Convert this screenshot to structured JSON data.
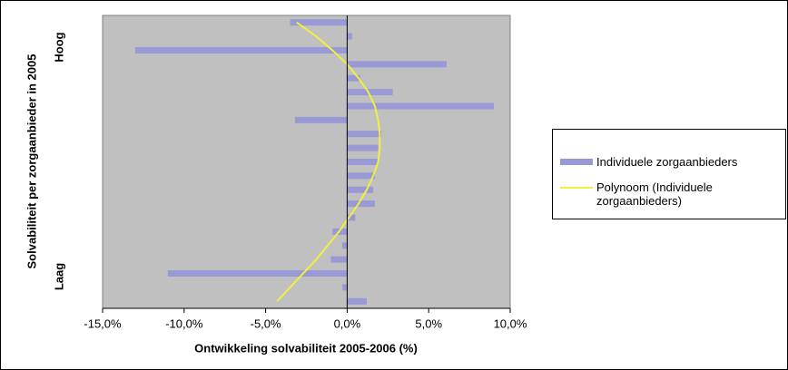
{
  "chart_data": {
    "type": "bar",
    "orientation": "horizontal",
    "x_label": "Ontwikkeling solvabiliteit 2005-2006 (%)",
    "y_label": "Solvabiliteit per zorgaanbieder in 2005",
    "annotations": [
      "Hoog",
      "Laag"
    ],
    "categories": [
      null,
      null,
      null,
      null,
      null,
      null,
      null,
      null,
      null,
      null,
      null,
      null,
      null,
      null,
      null,
      null,
      null,
      null,
      null,
      null,
      null
    ],
    "series": [
      {
        "name": "Individuele zorgaanbieders",
        "color": "#9999d6",
        "type": "bar",
        "values": [
          -3.5,
          0.3,
          -13.0,
          6.1,
          0.8,
          2.8,
          9.0,
          -3.2,
          2.1,
          1.9,
          1.9,
          1.7,
          1.6,
          1.7,
          0.5,
          -0.9,
          -0.3,
          -1.0,
          -11.0,
          -0.3,
          1.2
        ]
      },
      {
        "name": "Polynoom (Individuele zorgaanbieders)",
        "color": "#f0f040",
        "type": "line",
        "values": [
          -3.1,
          -1.9,
          -0.9,
          0.0,
          0.7,
          1.3,
          1.7,
          1.9,
          2.0,
          2.0,
          1.9,
          1.6,
          1.2,
          0.7,
          0.1,
          -0.5,
          -1.2,
          -1.9,
          -2.7,
          -3.5,
          -4.3
        ]
      }
    ],
    "xlim": [
      -15,
      10
    ],
    "xticks": [
      {
        "value": -15,
        "label": "-15,0%"
      },
      {
        "value": -10,
        "label": "-10,0%"
      },
      {
        "value": -5,
        "label": "-5,0%"
      },
      {
        "value": 0,
        "label": "0,0%"
      },
      {
        "value": 5,
        "label": "5,0%"
      },
      {
        "value": 10,
        "label": "10,0%"
      }
    ],
    "plot_background": "#c0c0c0"
  }
}
